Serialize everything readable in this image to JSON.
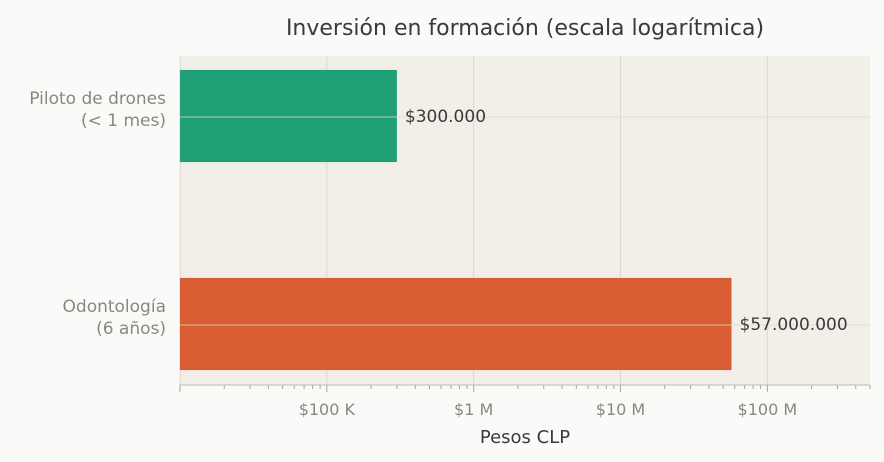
{
  "chart_data": {
    "type": "bar",
    "orientation": "horizontal",
    "title": "Inversión en formación (escala logarítmica)",
    "xlabel": "Pesos CLP",
    "ylabel": "",
    "x_scale": "log",
    "xlim": [
      10000,
      500000000
    ],
    "grid": true,
    "categories": [
      [
        "Piloto de drones",
        "(< 1 mes)"
      ],
      [
        "Odontología",
        "(6 años)"
      ]
    ],
    "values": [
      300000,
      57000000
    ],
    "value_labels": [
      "$300.000",
      "$57.000.000"
    ],
    "bar_colors": [
      "#1fa077",
      "#d95c32"
    ],
    "x_ticks": [
      {
        "value": 100000,
        "label": "$100 K"
      },
      {
        "value": 1000000,
        "label": "$1 M"
      },
      {
        "value": 10000000,
        "label": "$10 M"
      },
      {
        "value": 100000000,
        "label": "$100 M"
      }
    ]
  }
}
